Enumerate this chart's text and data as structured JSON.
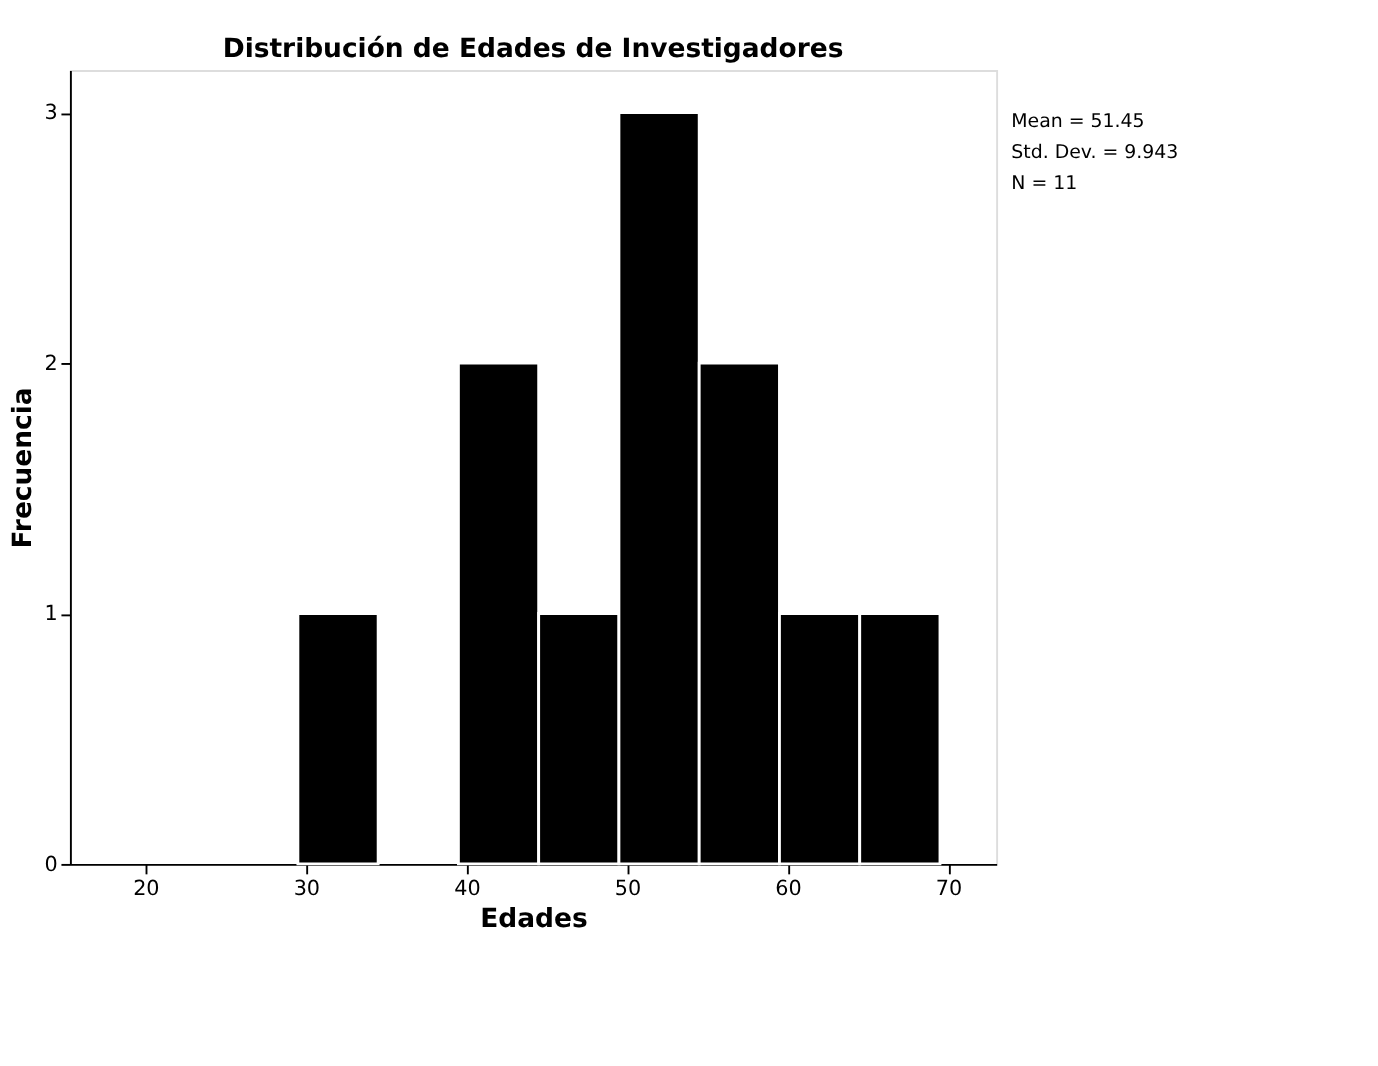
{
  "chart_data": {
    "type": "histogram",
    "title": "Distribución de Edades de Investigadores",
    "xlabel": "Edades",
    "ylabel": "Frecuencia",
    "bins": [
      29.5,
      34.5,
      39.5,
      44.5,
      49.5,
      54.5,
      59.5,
      64.5,
      69.5
    ],
    "values": [
      1,
      0,
      2,
      1,
      3,
      2,
      1,
      1
    ],
    "color": "#000000",
    "xlim": [
      15.3,
      73
    ],
    "xticks": [
      20,
      30,
      40,
      50,
      60,
      70
    ],
    "ylim": [
      0,
      3.17
    ],
    "yticks": [
      0,
      1,
      2,
      3
    ],
    "grid": false,
    "annotations": [
      "Mean = 51.45",
      "Std. Dev. = 9.943",
      "N = 11"
    ]
  }
}
